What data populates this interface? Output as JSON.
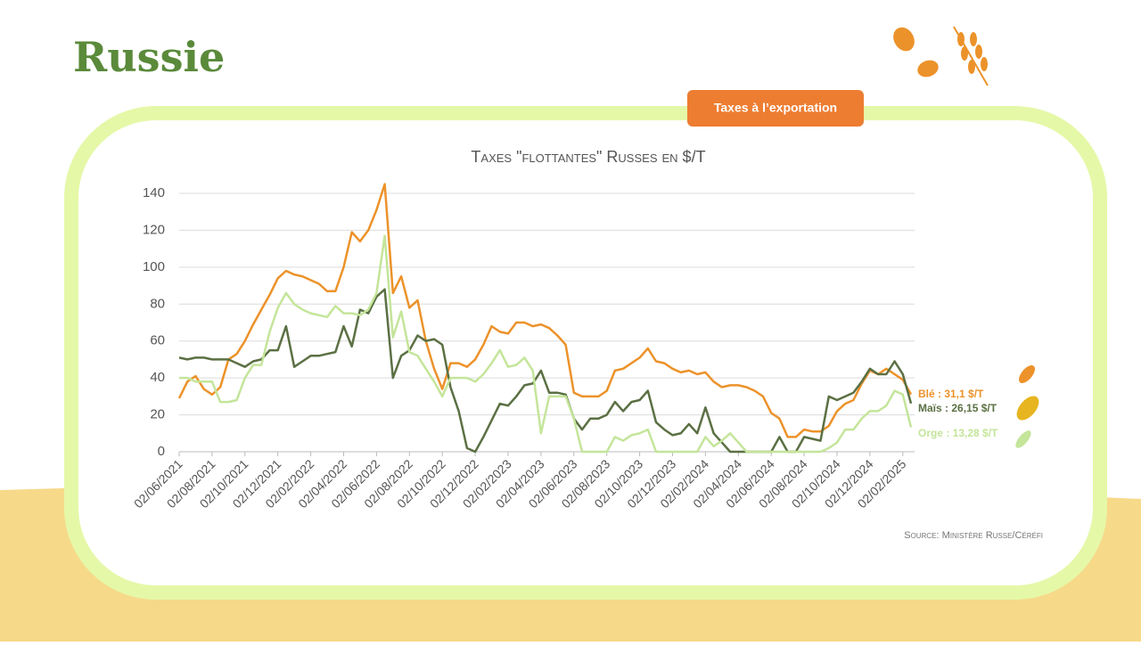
{
  "slide": {
    "title": "Russie",
    "tab": "Taxes à l’exportation"
  },
  "chart_data": {
    "type": "line",
    "title": "Taxes \"flottantes\" Russes en $/T",
    "source": "Source: Ministère Russe/Céréfi",
    "categories": [
      "02/06/2021",
      null,
      null,
      null,
      "02/08/2021",
      null,
      null,
      null,
      "02/10/2021",
      null,
      null,
      null,
      "02/12/2021",
      null,
      null,
      null,
      "02/02/2022",
      null,
      null,
      null,
      "02/04/2022",
      null,
      null,
      null,
      "02/06/2022",
      null,
      null,
      null,
      "02/08/2022",
      null,
      null,
      null,
      "02/10/2022",
      null,
      null,
      null,
      "02/12/2022",
      null,
      null,
      null,
      "02/02/2023",
      null,
      null,
      null,
      "02/04/2023",
      null,
      null,
      null,
      "02/06/2023",
      null,
      null,
      null,
      "02/08/2023",
      null,
      null,
      null,
      "02/10/2023",
      null,
      null,
      null,
      "02/12/2023",
      null,
      null,
      null,
      "02/02/2024",
      null,
      null,
      null,
      "02/04/2024",
      null,
      null,
      null,
      "02/06/2024",
      null,
      null,
      null,
      "02/08/2024",
      null,
      null,
      null,
      "02/10/2024",
      null,
      null,
      null,
      "02/12/2024",
      null,
      null,
      null,
      "02/02/2025",
      null
    ],
    "series": [
      {
        "label": "Blé : 31,1 $/T",
        "color": "#ec922a",
        "values": [
          29,
          38,
          41,
          34,
          31,
          35,
          50,
          53,
          60,
          69,
          77,
          85,
          94,
          98,
          96,
          95,
          93,
          91,
          87,
          87,
          100,
          119,
          114,
          120,
          131,
          145,
          86,
          95,
          78,
          82,
          60,
          45,
          34,
          48,
          48,
          46,
          50,
          58,
          68,
          65,
          64,
          70,
          70,
          68,
          69,
          67,
          63,
          58,
          32,
          30,
          30,
          30,
          33,
          44,
          45,
          48,
          51,
          56,
          49,
          48,
          45,
          43,
          44,
          42,
          43,
          38,
          35,
          36,
          36,
          35,
          33,
          30,
          21,
          18,
          8,
          8,
          12,
          11,
          11,
          14,
          22,
          26,
          28,
          37,
          44,
          42,
          45,
          42,
          39,
          31.1
        ]
      },
      {
        "label": "Maïs : 26,15 $/T",
        "color": "#5b7043",
        "values": [
          51,
          50,
          51,
          51,
          50,
          50,
          50,
          48,
          46,
          49,
          50,
          55,
          55,
          68,
          46,
          49,
          52,
          52,
          53,
          54,
          68,
          57,
          77,
          75,
          84,
          88,
          40,
          52,
          55,
          63,
          60,
          61,
          58,
          35,
          22,
          2,
          0,
          8,
          17,
          26,
          25,
          30,
          36,
          37,
          44,
          32,
          32,
          31,
          18,
          12,
          18,
          18,
          20,
          27,
          22,
          27,
          28,
          33,
          16,
          12,
          9,
          10,
          15,
          10,
          24,
          10,
          5,
          0,
          0,
          0,
          0,
          0,
          0,
          8,
          0,
          0,
          8,
          7,
          6,
          30,
          28,
          30,
          32,
          38,
          45,
          42,
          42,
          49,
          42,
          26.15
        ]
      },
      {
        "label": "Orge : 13,28 $/T",
        "color": "#c4e59a",
        "values": [
          40,
          40,
          38,
          38,
          38,
          27,
          27,
          28,
          40,
          47,
          47,
          65,
          78,
          86,
          80,
          77,
          75,
          74,
          73,
          79,
          75,
          75,
          74,
          77,
          86,
          117,
          62,
          76,
          54,
          52,
          45,
          38,
          30,
          40,
          40,
          40,
          38,
          42,
          48,
          55,
          46,
          47,
          51,
          44,
          10,
          30,
          30,
          30,
          18,
          0,
          0,
          0,
          0,
          8,
          6,
          9,
          10,
          12,
          0,
          0,
          0,
          0,
          0,
          0,
          8,
          3,
          6,
          10,
          5,
          0,
          0,
          0,
          0,
          0,
          0,
          0,
          0,
          0,
          0,
          2,
          5,
          12,
          12,
          18,
          22,
          22,
          25,
          33,
          31,
          13.28
        ]
      }
    ],
    "ylim": [
      0,
      140
    ],
    "yticks": [
      0,
      20,
      40,
      60,
      80,
      100,
      120,
      140
    ],
    "grid": true
  }
}
